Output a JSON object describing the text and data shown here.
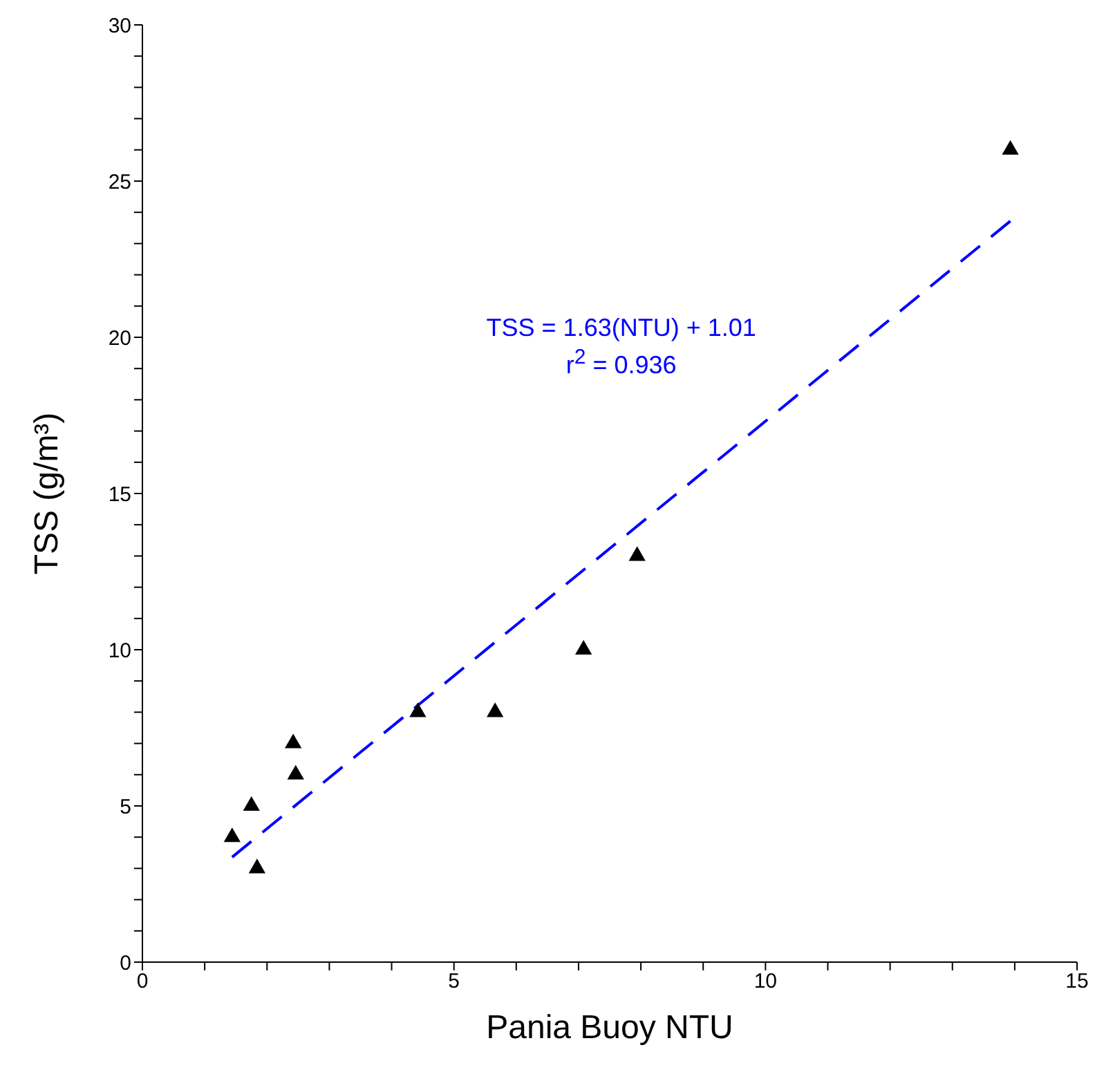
{
  "chart_data": {
    "type": "scatter",
    "xlabel": "Pania Buoy NTU",
    "ylabel": "TSS (g/m³)",
    "xlim": [
      0,
      15
    ],
    "xticks": [
      0,
      {
        "value": 1,
        "label": null
      },
      {
        "value": 2,
        "label": null
      },
      {
        "value": 3,
        "label": null
      },
      {
        "value": 4,
        "label": null
      },
      5,
      {
        "value": 6,
        "label": null
      },
      {
        "value": 7,
        "label": null
      },
      {
        "value": 8,
        "label": null
      },
      {
        "value": 9,
        "label": null
      },
      10,
      {
        "value": 11,
        "label": null
      },
      {
        "value": 12,
        "label": null
      },
      {
        "value": 13,
        "label": null
      },
      {
        "value": 14,
        "label": null
      },
      15
    ],
    "ylim": [
      0,
      30
    ],
    "yticks": [
      0,
      {
        "value": 1,
        "label": null
      },
      {
        "value": 2,
        "label": null
      },
      {
        "value": 3,
        "label": null
      },
      {
        "value": 4,
        "label": null
      },
      5,
      {
        "value": 6,
        "label": null
      },
      {
        "value": 7,
        "label": null
      },
      {
        "value": 8,
        "label": null
      },
      {
        "value": 9,
        "label": null
      },
      10,
      {
        "value": 11,
        "label": null
      },
      {
        "value": 12,
        "label": null
      },
      {
        "value": 13,
        "label": null
      },
      {
        "value": 14,
        "label": null
      },
      15,
      {
        "value": 16,
        "label": null
      },
      {
        "value": 17,
        "label": null
      },
      {
        "value": 18,
        "label": null
      },
      {
        "value": 19,
        "label": null
      },
      20,
      {
        "value": 21,
        "label": null
      },
      {
        "value": 22,
        "label": null
      },
      {
        "value": 23,
        "label": null
      },
      {
        "value": 24,
        "label": null
      },
      25,
      {
        "value": 26,
        "label": null
      },
      {
        "value": 27,
        "label": null
      },
      {
        "value": 28,
        "label": null
      },
      {
        "value": 29,
        "label": null
      },
      30
    ],
    "series": [
      {
        "marker": "triangle",
        "color": "#000000",
        "x": [
          1.44,
          1.75,
          1.84,
          2.42,
          2.46,
          4.42,
          5.66,
          7.08,
          7.94,
          13.93
        ],
        "values": [
          4,
          5,
          3,
          7,
          6,
          8,
          8,
          10,
          13,
          26
        ]
      },
      {
        "type": "line",
        "color": "#0000ff",
        "line_style": "dashed",
        "x": [
          1.44,
          13.93
        ],
        "values": [
          3.36,
          23.72
        ]
      }
    ],
    "annotations": [
      "TSS = 1.63(NTU) + 1.01",
      "r$^{2}$ = 0.936"
    ]
  }
}
